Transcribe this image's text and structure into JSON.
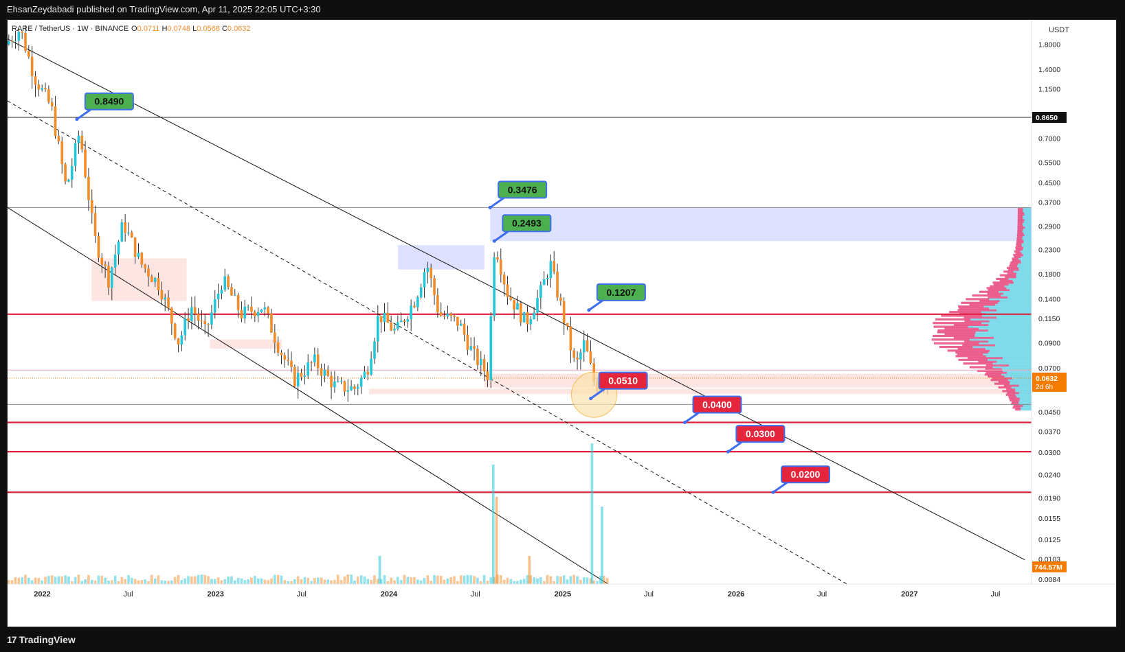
{
  "header": {
    "publisher_line": "EhsanZeydabadi published on TradingView.com, Apr 11, 2025 22:05 UTC+3:30"
  },
  "footer": {
    "brand": "TradingView",
    "brand_mark": "17"
  },
  "legend": {
    "symbol": "RARE / TetherUS · 1W · BINANCE",
    "ohlc": [
      {
        "label": "O",
        "value": "0.0711"
      },
      {
        "label": "H",
        "value": "0.0748"
      },
      {
        "label": "L",
        "value": "0.0568"
      },
      {
        "label": "C",
        "value": "0.0632"
      }
    ]
  },
  "colors": {
    "bull": "#26c6da",
    "bear": "#f28c28",
    "support": "#e0203a",
    "green_label": "#4caf50",
    "red_label": "#e5253b",
    "zone_blue": "#d6dcff",
    "zone_red": "#fde0dc",
    "profile_pink": "#e8497e",
    "profile_cyan": "#6dd6e8",
    "price_tag": "#f57c00"
  },
  "chart_data": {
    "type": "candlestick",
    "scale": "log",
    "currency": "USDT",
    "ylim": [
      0.008,
      2.3
    ],
    "xlim": [
      "2021-10-20",
      "2027-09-15"
    ],
    "y_ticks": [
      "1.8000",
      "1.4000",
      "1.1500",
      "0.8650",
      "0.7000",
      "0.5500",
      "0.4500",
      "0.3700",
      "0.2900",
      "0.2300",
      "0.1800",
      "0.1400",
      "0.1150",
      "0.0900",
      "0.0700",
      "0.0632",
      "0.0450",
      "0.0370",
      "0.0300",
      "0.0240",
      "0.0190",
      "0.0155",
      "0.0125",
      "0.0103",
      "0.0084"
    ],
    "x_ticks": [
      {
        "label": "2022",
        "date": "2022-01-01"
      },
      {
        "label": "Jul",
        "date": "2022-07-01"
      },
      {
        "label": "2023",
        "date": "2023-01-01"
      },
      {
        "label": "Jul",
        "date": "2023-07-01"
      },
      {
        "label": "2024",
        "date": "2024-01-01"
      },
      {
        "label": "Jul",
        "date": "2024-07-01"
      },
      {
        "label": "2025",
        "date": "2025-01-01"
      },
      {
        "label": "Jul",
        "date": "2025-07-01"
      },
      {
        "label": "2026",
        "date": "2026-01-01"
      },
      {
        "label": "Jul",
        "date": "2026-07-01"
      },
      {
        "label": "2027",
        "date": "2027-01-01"
      },
      {
        "label": "Jul",
        "date": "2027-07-01"
      }
    ],
    "current_price": {
      "value": 0.0632,
      "label": "0.0632",
      "countdown": "2d 6h"
    },
    "volume_label": "744.57M",
    "horizontal_lines": [
      {
        "price": 0.865,
        "color": "#222222",
        "label": "0.8650"
      },
      {
        "price": 0.35,
        "color": "#888888"
      },
      {
        "price": 0.12,
        "color": "#e0203a"
      },
      {
        "price": 0.0685,
        "color": "#f4a3b4"
      },
      {
        "price": 0.0485,
        "color": "#888888"
      },
      {
        "price": 0.0405,
        "color": "#e0203a"
      },
      {
        "price": 0.0302,
        "color": "#e0203a"
      },
      {
        "price": 0.0201,
        "color": "#e0203a"
      }
    ],
    "zones": [
      {
        "t0": "2024-08-01",
        "t1": "2027-09-15",
        "p0": 0.25,
        "p1": 0.35,
        "color": "zone_blue"
      },
      {
        "t0": "2024-01-20",
        "t1": "2024-07-20",
        "p0": 0.188,
        "p1": 0.24,
        "color": "zone_blue"
      },
      {
        "t0": "2022-04-15",
        "t1": "2022-11-01",
        "p0": 0.137,
        "p1": 0.21,
        "color": "zone_red"
      },
      {
        "t0": "2022-12-20",
        "t1": "2023-05-20",
        "p0": 0.085,
        "p1": 0.093,
        "color": "zone_red"
      },
      {
        "t0": "2024-07-20",
        "t1": "2027-09-15",
        "p0": 0.0575,
        "p1": 0.066,
        "color": "zone_red"
      },
      {
        "t0": "2023-11-20",
        "t1": "2027-09-15",
        "p0": 0.0538,
        "p1": 0.0568,
        "color": "zone_red"
      }
    ],
    "trendlines": [
      {
        "t0": "2021-10-20",
        "p0": 1.9,
        "t1": "2027-09-01",
        "p1": 0.0102,
        "style": "solid"
      },
      {
        "t0": "2021-10-20",
        "p0": 0.35,
        "t1": "2025-04-15",
        "p1": 0.0078,
        "style": "solid"
      },
      {
        "t0": "2021-10-20",
        "p0": 1.02,
        "t1": "2026-09-01",
        "p1": 0.0078,
        "style": "dashed"
      }
    ],
    "callouts": [
      {
        "label": "0.8490",
        "kind": "green",
        "t": "2022-03-15",
        "p": 0.849
      },
      {
        "label": "0.3476",
        "kind": "green",
        "t": "2024-08-01",
        "p": 0.35
      },
      {
        "label": "0.2493",
        "kind": "green",
        "t": "2024-08-10",
        "p": 0.25
      },
      {
        "label": "0.1207",
        "kind": "green",
        "t": "2025-02-25",
        "p": 0.125
      },
      {
        "label": "0.0510",
        "kind": "red",
        "t": "2025-03-01",
        "p": 0.0515
      },
      {
        "label": "0.0400",
        "kind": "red",
        "t": "2025-09-15",
        "p": 0.0405
      },
      {
        "label": "0.0300",
        "kind": "red",
        "t": "2025-12-15",
        "p": 0.0302
      },
      {
        "label": "0.0200",
        "kind": "red",
        "t": "2026-03-20",
        "p": 0.0201
      }
    ],
    "highlight_circle": {
      "t": "2025-03-08",
      "p": 0.0535
    },
    "key_points": [
      {
        "t": "2021-10-20",
        "p": 1.8
      },
      {
        "t": "2021-11-20",
        "p": 2.1
      },
      {
        "t": "2021-12-20",
        "p": 1.3
      },
      {
        "t": "2022-01-25",
        "p": 0.95
      },
      {
        "t": "2022-02-25",
        "p": 0.42
      },
      {
        "t": "2022-03-25",
        "p": 0.75
      },
      {
        "t": "2022-04-25",
        "p": 0.26
      },
      {
        "t": "2022-05-25",
        "p": 0.17
      },
      {
        "t": "2022-06-25",
        "p": 0.3
      },
      {
        "t": "2022-08-01",
        "p": 0.2
      },
      {
        "t": "2022-09-10",
        "p": 0.16
      },
      {
        "t": "2022-10-20",
        "p": 0.09
      },
      {
        "t": "2022-11-15",
        "p": 0.13
      },
      {
        "t": "2022-12-15",
        "p": 0.1
      },
      {
        "t": "2023-01-20",
        "p": 0.17
      },
      {
        "t": "2023-03-01",
        "p": 0.12
      },
      {
        "t": "2023-04-15",
        "p": 0.13
      },
      {
        "t": "2023-05-20",
        "p": 0.085
      },
      {
        "t": "2023-06-20",
        "p": 0.062
      },
      {
        "t": "2023-08-01",
        "p": 0.075
      },
      {
        "t": "2023-09-15",
        "p": 0.058
      },
      {
        "t": "2023-10-25",
        "p": 0.057
      },
      {
        "t": "2023-11-20",
        "p": 0.068
      },
      {
        "t": "2023-12-15",
        "p": 0.12
      },
      {
        "t": "2024-01-20",
        "p": 0.1
      },
      {
        "t": "2024-03-01",
        "p": 0.14
      },
      {
        "t": "2024-03-25",
        "p": 0.2
      },
      {
        "t": "2024-04-20",
        "p": 0.12
      },
      {
        "t": "2024-06-01",
        "p": 0.11
      },
      {
        "t": "2024-07-01",
        "p": 0.08
      },
      {
        "t": "2024-08-01",
        "p": 0.065
      },
      {
        "t": "2024-08-15",
        "p": 0.25
      },
      {
        "t": "2024-09-10",
        "p": 0.15
      },
      {
        "t": "2024-10-20",
        "p": 0.11
      },
      {
        "t": "2024-11-20",
        "p": 0.15
      },
      {
        "t": "2024-12-10",
        "p": 0.2
      },
      {
        "t": "2025-01-10",
        "p": 0.11
      },
      {
        "t": "2025-02-01",
        "p": 0.07
      },
      {
        "t": "2025-02-20",
        "p": 0.09
      },
      {
        "t": "2025-03-15",
        "p": 0.058
      },
      {
        "t": "2025-04-08",
        "p": 0.0632
      }
    ],
    "volume_spikes": [
      {
        "t": "2024-08-05",
        "v": 0.85,
        "color": "bull"
      },
      {
        "t": "2024-08-12",
        "v": 0.62,
        "color": "bear"
      },
      {
        "t": "2025-03-01",
        "v": 1.0,
        "color": "bull"
      },
      {
        "t": "2025-03-22",
        "v": 0.55,
        "color": "bull"
      },
      {
        "t": "2023-12-10",
        "v": 0.2,
        "color": "bull"
      },
      {
        "t": "2024-10-20",
        "v": 0.2,
        "color": "bear"
      }
    ]
  }
}
